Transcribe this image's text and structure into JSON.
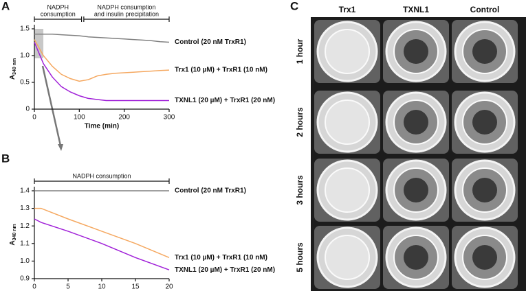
{
  "chart_data": [
    {
      "type": "line",
      "panel_label": "A",
      "x_label": "Time (min)",
      "y_label": "A",
      "y_label_subscript": "340 nm",
      "x": [
        0,
        20,
        40,
        60,
        80,
        100,
        120,
        140,
        160,
        180,
        200,
        220,
        240,
        260,
        280,
        300
      ],
      "xlim": [
        0,
        300
      ],
      "xticks": [
        0,
        100,
        200,
        300
      ],
      "ylim": [
        0,
        1.5
      ],
      "yticks": [
        0,
        0.5,
        {
          "value": 1,
          "label": "1.0"
        },
        1.5
      ],
      "highlight": {
        "x": [
          0,
          20
        ],
        "y": [
          0.95,
          1.5
        ],
        "color": "#c8c8c8"
      },
      "annotations": [
        {
          "text": [
            "NADPH",
            "consumption"
          ],
          "x": [
            0,
            105
          ]
        },
        {
          "text": [
            "NADPH consumption",
            "and insulin precipitation"
          ],
          "x": [
            110,
            300
          ]
        }
      ],
      "series": [
        {
          "name": "Control (20 nM TrxR1)",
          "color": "#808080",
          "values": [
            1.4,
            1.4,
            1.4,
            1.39,
            1.38,
            1.37,
            1.35,
            1.34,
            1.33,
            1.32,
            1.31,
            1.3,
            1.29,
            1.28,
            1.26,
            1.25
          ]
        },
        {
          "name": "Trx1 (10 µM) + TrxR1 (10 nM)",
          "color": "#f5a860",
          "values": [
            1.3,
            1.0,
            0.8,
            0.65,
            0.57,
            0.52,
            0.55,
            0.62,
            0.65,
            0.67,
            0.68,
            0.69,
            0.7,
            0.71,
            0.72,
            0.73
          ]
        },
        {
          "name": "TXNL1 (20 µM) + TrxR1 (20 nM)",
          "color": "#a020d8",
          "values": [
            1.25,
            0.85,
            0.6,
            0.42,
            0.32,
            0.25,
            0.2,
            0.18,
            0.16,
            0.16,
            0.16,
            0.16,
            0.16,
            0.16,
            0.16,
            0.16
          ]
        }
      ]
    },
    {
      "type": "line",
      "panel_label": "B",
      "x_label": "Time (min)",
      "y_label": "A",
      "y_label_subscript": "340 nm",
      "x": [
        0,
        1,
        5,
        10,
        15,
        20
      ],
      "xlim": [
        0,
        20
      ],
      "xticks": [
        0,
        5,
        10,
        15,
        20
      ],
      "ylim": [
        0.9,
        1.4
      ],
      "yticks": [
        0.9,
        {
          "value": 1,
          "label": "1.0"
        },
        1.1,
        1.2,
        1.3,
        1.4
      ],
      "annotations": [
        {
          "text": [
            "NADPH consumption"
          ],
          "x": [
            0,
            20
          ]
        }
      ],
      "series": [
        {
          "name": "Control (20 nM TrxR1)",
          "color": "#808080",
          "values": [
            1.4,
            1.4,
            1.4,
            1.4,
            1.4,
            1.4
          ]
        },
        {
          "name": "Trx1 (10 µM) + TrxR1 (10 nM)",
          "color": "#f5a860",
          "values": [
            1.3,
            1.3,
            1.24,
            1.17,
            1.1,
            1.02
          ]
        },
        {
          "name": "TXNL1 (20 µM) + TrxR1 (20 nM)",
          "color": "#a020d8",
          "values": [
            1.24,
            1.22,
            1.17,
            1.1,
            1.02,
            0.95
          ]
        }
      ]
    }
  ],
  "photo_panel": {
    "panel_label": "C",
    "columns": [
      "Trx1",
      "TXNL1",
      "Control"
    ],
    "rows": [
      "1 hour",
      "2 hours",
      "3 hours",
      "5 hours"
    ]
  }
}
